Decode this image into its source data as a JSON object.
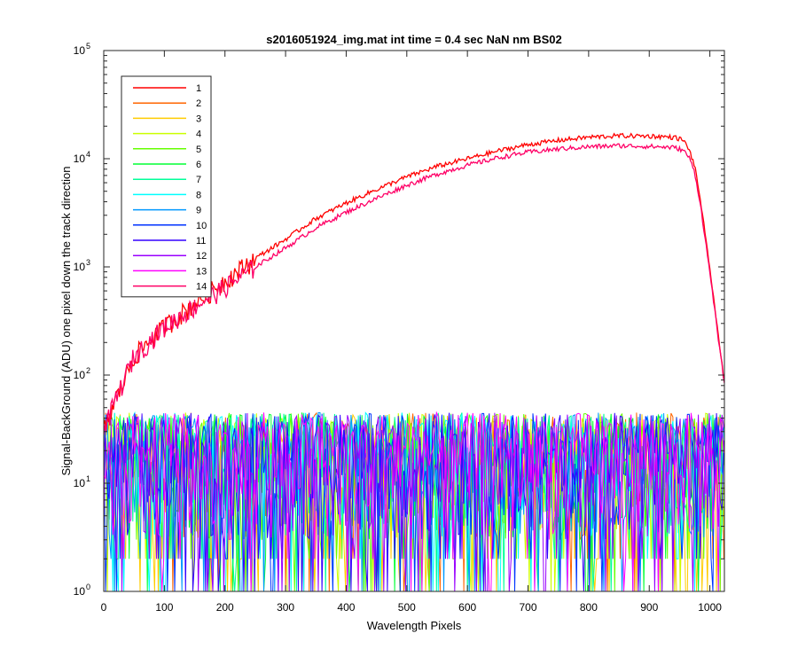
{
  "chart_data": {
    "type": "line",
    "title": "s2016051924_img.mat int time = 0.4 sec  NaN nm BS02",
    "xlabel": "Wavelength Pixels",
    "ylabel": "Signal-BackGround (ADU) one pixel down the track direction",
    "xlim": [
      0,
      1024
    ],
    "ylim": [
      1,
      100000
    ],
    "yscale": "log",
    "grid": false,
    "legend": "top-left",
    "x_ticks": [
      {
        "value": 0,
        "label": "0"
      },
      {
        "value": 100,
        "label": "100"
      },
      {
        "value": 200,
        "label": "200"
      },
      {
        "value": 300,
        "label": "300"
      },
      {
        "value": 400,
        "label": "400"
      },
      {
        "value": 500,
        "label": "500"
      },
      {
        "value": 600,
        "label": "600"
      },
      {
        "value": 700,
        "label": "700"
      },
      {
        "value": 800,
        "label": "800"
      },
      {
        "value": 900,
        "label": "900"
      },
      {
        "value": 1000,
        "label": "1000"
      }
    ],
    "y_ticks": [
      {
        "value": 1,
        "base": "10",
        "exp": "0"
      },
      {
        "value": 10,
        "base": "10",
        "exp": "1"
      },
      {
        "value": 100,
        "base": "10",
        "exp": "2"
      },
      {
        "value": 1000,
        "base": "10",
        "exp": "3"
      },
      {
        "value": 10000,
        "base": "10",
        "exp": "4"
      },
      {
        "value": 100000,
        "base": "10",
        "exp": "5"
      }
    ],
    "series": [
      {
        "name": "1",
        "color": "#ff0000",
        "kind": "signal",
        "x": [
          0,
          20,
          50,
          100,
          150,
          200,
          250,
          300,
          350,
          400,
          450,
          500,
          550,
          600,
          650,
          700,
          750,
          800,
          850,
          900,
          940,
          955,
          965,
          975,
          985,
          995,
          1005,
          1015,
          1024
        ],
        "y": [
          30,
          60,
          150,
          280,
          460,
          750,
          1200,
          1800,
          2800,
          3900,
          5200,
          6800,
          8500,
          10000,
          11800,
          13500,
          14800,
          15800,
          16300,
          16200,
          15800,
          15000,
          12500,
          8500,
          4000,
          1500,
          600,
          200,
          90
        ]
      },
      {
        "name": "2",
        "color": "#ff6600",
        "kind": "noise"
      },
      {
        "name": "3",
        "color": "#ffcc00",
        "kind": "noise"
      },
      {
        "name": "4",
        "color": "#ccff00",
        "kind": "noise"
      },
      {
        "name": "5",
        "color": "#66ff00",
        "kind": "noise"
      },
      {
        "name": "6",
        "color": "#00ff33",
        "kind": "noise"
      },
      {
        "name": "7",
        "color": "#00ff99",
        "kind": "noise"
      },
      {
        "name": "8",
        "color": "#00ffff",
        "kind": "noise"
      },
      {
        "name": "9",
        "color": "#0099ff",
        "kind": "noise"
      },
      {
        "name": "10",
        "color": "#0033ff",
        "kind": "noise"
      },
      {
        "name": "11",
        "color": "#3300ff",
        "kind": "noise"
      },
      {
        "name": "12",
        "color": "#9900ff",
        "kind": "noise"
      },
      {
        "name": "13",
        "color": "#ff00ff",
        "kind": "noise"
      },
      {
        "name": "14",
        "color": "#ff0066",
        "kind": "signal",
        "x": [
          0,
          20,
          50,
          100,
          150,
          200,
          250,
          300,
          350,
          400,
          450,
          500,
          550,
          600,
          650,
          700,
          750,
          800,
          850,
          900,
          940,
          955,
          965,
          975,
          985,
          995,
          1005,
          1015,
          1024
        ],
        "y": [
          30,
          60,
          150,
          280,
          430,
          650,
          1000,
          1500,
          2300,
          3200,
          4300,
          5700,
          7200,
          8700,
          10200,
          11500,
          12300,
          12900,
          13200,
          13000,
          12700,
          12100,
          10500,
          7500,
          3600,
          1400,
          550,
          190,
          85
        ]
      }
    ],
    "noise_band": {
      "typical_min": 2,
      "typical_max": 45
    }
  }
}
